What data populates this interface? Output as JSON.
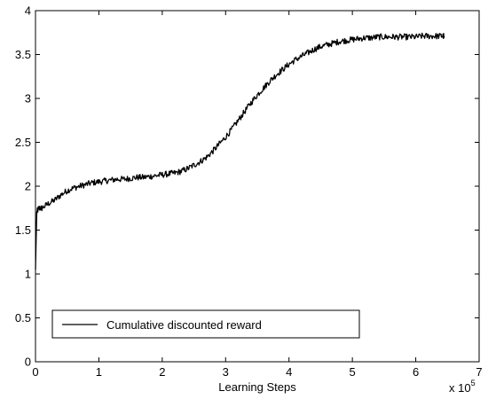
{
  "chart_data": {
    "type": "line",
    "title": "",
    "xlabel": "Learning Steps",
    "ylabel": "",
    "x_multiplier_label": {
      "prefix": "x 10",
      "exponent": "5"
    },
    "xlim": [
      0,
      7
    ],
    "ylim": [
      0,
      4
    ],
    "x_ticks": [
      0,
      1,
      2,
      3,
      4,
      5,
      6,
      7
    ],
    "y_ticks": [
      0,
      0.5,
      1,
      1.5,
      2,
      2.5,
      3,
      3.5,
      4
    ],
    "x_tick_labels": [
      "0",
      "1",
      "2",
      "3",
      "4",
      "5",
      "6",
      "7"
    ],
    "y_tick_labels": [
      "0",
      "0.5",
      "1",
      "1.5",
      "2",
      "2.5",
      "3",
      "3.5",
      "4"
    ],
    "grid": false,
    "legend": {
      "entries": [
        "Cumulative discounted reward"
      ],
      "placement": "bottom-left"
    },
    "series": [
      {
        "name": "Cumulative discounted reward",
        "color": "#000000",
        "x": [
          0,
          0.02,
          0.05,
          0.1,
          0.2,
          0.3,
          0.4,
          0.5,
          0.6,
          0.7,
          0.8,
          0.9,
          1.0,
          1.1,
          1.2,
          1.3,
          1.4,
          1.5,
          1.6,
          1.7,
          1.8,
          1.9,
          2.0,
          2.1,
          2.2,
          2.3,
          2.4,
          2.5,
          2.6,
          2.7,
          2.8,
          2.9,
          3.0,
          3.1,
          3.2,
          3.3,
          3.4,
          3.5,
          3.6,
          3.7,
          3.8,
          3.9,
          4.0,
          4.1,
          4.2,
          4.3,
          4.4,
          4.5,
          4.6,
          4.7,
          4.8,
          4.9,
          5.0,
          5.1,
          5.2,
          5.3,
          5.4,
          5.5,
          5.6,
          5.7,
          5.8,
          5.9,
          6.0,
          6.1,
          6.2,
          6.3,
          6.4,
          6.45
        ],
        "y": [
          1.05,
          1.7,
          1.75,
          1.75,
          1.8,
          1.84,
          1.9,
          1.95,
          1.98,
          2.0,
          2.02,
          2.04,
          2.05,
          2.06,
          2.07,
          2.08,
          2.08,
          2.09,
          2.1,
          2.1,
          2.11,
          2.12,
          2.13,
          2.14,
          2.15,
          2.17,
          2.2,
          2.24,
          2.28,
          2.33,
          2.4,
          2.48,
          2.56,
          2.65,
          2.75,
          2.85,
          2.95,
          3.04,
          3.12,
          3.2,
          3.27,
          3.33,
          3.39,
          3.44,
          3.48,
          3.52,
          3.56,
          3.59,
          3.61,
          3.63,
          3.65,
          3.66,
          3.67,
          3.68,
          3.69,
          3.69,
          3.7,
          3.7,
          3.7,
          3.7,
          3.7,
          3.7,
          3.7,
          3.71,
          3.71,
          3.71,
          3.71,
          3.71
        ]
      }
    ]
  }
}
